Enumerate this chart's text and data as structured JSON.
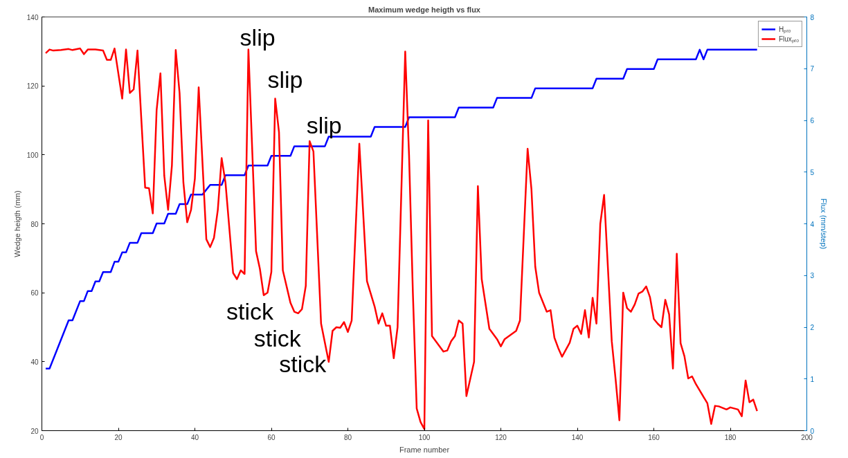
{
  "chart_data": {
    "type": "line",
    "title": "Maximum wedge heigth vs flux",
    "xlabel": "Frame number",
    "ylabel": "Wedge heigth (mm)",
    "y2label": "Flux (mm/step)",
    "xlim": [
      0,
      200
    ],
    "xticks": [
      0,
      20,
      40,
      60,
      80,
      100,
      120,
      140,
      160,
      180,
      200
    ],
    "ylim": [
      20,
      140
    ],
    "yticks": [
      20,
      40,
      60,
      80,
      100,
      120,
      140
    ],
    "y2lim": [
      0,
      8
    ],
    "y2ticks": [
      0,
      1,
      2,
      3,
      4,
      5,
      6,
      7,
      8
    ],
    "grid": false,
    "legend": "top right",
    "line_style": "solid",
    "marker": "none",
    "series": [
      {
        "name": "Hₚᵣₒ",
        "color": "#0000ff",
        "x": [
          1,
          2,
          7,
          8,
          10,
          11,
          12,
          13,
          14,
          15,
          16,
          18,
          19,
          20,
          21,
          22,
          23,
          25,
          26,
          29,
          30,
          32,
          33,
          35,
          36,
          38,
          39,
          42,
          44,
          47,
          48,
          53,
          54,
          59,
          60,
          65,
          66,
          74,
          75,
          86,
          87,
          95,
          96,
          108,
          109,
          118,
          119,
          128,
          129,
          144,
          145,
          152,
          153,
          160,
          161,
          171,
          172,
          173,
          174,
          187
        ],
        "values": [
          38,
          38,
          52,
          52,
          57.6,
          57.6,
          60.5,
          60.5,
          63.3,
          63.3,
          66,
          66,
          69,
          69,
          71.7,
          71.7,
          74.5,
          74.5,
          77.3,
          77.3,
          80.1,
          80.1,
          82.9,
          82.9,
          85.7,
          85.7,
          88.5,
          88.5,
          91.3,
          91.3,
          94.1,
          94.1,
          96.9,
          96.9,
          99.7,
          99.7,
          102.5,
          102.5,
          105.3,
          105.3,
          108.1,
          108.1,
          110.9,
          110.9,
          113.7,
          113.7,
          116.5,
          116.5,
          119.3,
          119.3,
          122.1,
          122.1,
          124.9,
          124.9,
          127.7,
          127.7,
          130.5,
          127.7,
          130.5,
          130.5
        ]
      },
      {
        "name": "Fluxₚᵣₒ",
        "color": "#ff0000",
        "axis": "y2",
        "x": [
          1,
          2,
          3,
          5,
          7,
          8,
          10,
          11,
          12,
          14,
          16,
          17,
          18,
          19,
          21,
          22,
          23,
          24,
          25,
          27,
          28,
          29,
          30,
          31,
          32,
          33,
          34,
          35,
          36,
          37,
          38,
          39,
          40,
          41,
          43,
          44,
          45,
          46,
          47,
          48,
          50,
          51,
          52,
          53,
          54,
          56,
          57,
          58,
          59,
          60,
          61,
          62,
          63,
          65,
          66,
          67,
          68,
          69,
          70,
          71,
          73,
          75,
          76,
          77,
          78,
          79,
          80,
          81,
          83,
          85,
          87,
          88,
          89,
          90,
          91,
          92,
          93,
          95,
          96,
          97,
          98,
          99,
          100,
          101,
          102,
          103,
          104,
          105,
          106,
          107,
          108,
          109,
          110,
          111,
          113,
          114,
          115,
          117,
          119,
          120,
          121,
          124,
          125,
          127,
          128,
          129,
          130,
          132,
          133,
          134,
          135,
          136,
          138,
          139,
          140,
          141,
          142,
          143,
          144,
          145,
          146,
          147,
          149,
          150,
          151,
          152,
          153,
          154,
          155,
          156,
          157,
          158,
          159,
          160,
          161,
          162,
          163,
          164,
          165,
          166,
          167,
          168,
          169,
          170,
          171,
          174,
          175,
          176,
          177,
          178,
          179,
          180,
          182,
          183,
          184,
          185,
          186,
          187
        ],
        "values": [
          7.3,
          7.37,
          7.35,
          7.36,
          7.38,
          7.36,
          7.39,
          7.28,
          7.37,
          7.37,
          7.35,
          7.17,
          7.17,
          7.39,
          6.42,
          7.37,
          6.53,
          6.6,
          7.35,
          4.7,
          4.69,
          4.2,
          6.2,
          6.91,
          4.93,
          4.27,
          5.13,
          7.36,
          6.53,
          4.8,
          4.03,
          4.27,
          4.87,
          6.64,
          3.7,
          3.55,
          3.73,
          4.27,
          5.27,
          4.8,
          3.05,
          2.93,
          3.1,
          3.03,
          7.37,
          3.47,
          3.13,
          2.62,
          2.67,
          3.07,
          6.42,
          5.77,
          3.1,
          2.47,
          2.3,
          2.27,
          2.35,
          2.8,
          5.6,
          5.4,
          2.07,
          1.33,
          1.93,
          2.0,
          1.99,
          2.1,
          1.91,
          2.13,
          5.55,
          2.89,
          2.4,
          2.07,
          2.27,
          2.03,
          2.03,
          1.4,
          2.0,
          7.33,
          5.33,
          2.67,
          0.43,
          0.17,
          0.03,
          6.0,
          1.83,
          1.73,
          1.63,
          1.53,
          1.55,
          1.73,
          1.83,
          2.13,
          2.07,
          0.67,
          1.33,
          4.73,
          2.93,
          1.97,
          1.77,
          1.63,
          1.77,
          1.93,
          2.13,
          5.45,
          4.67,
          3.17,
          2.67,
          2.3,
          2.33,
          1.8,
          1.6,
          1.43,
          1.7,
          1.97,
          2.03,
          1.87,
          2.33,
          1.8,
          2.57,
          2.07,
          4.0,
          4.56,
          1.73,
          1.0,
          0.2,
          2.67,
          2.37,
          2.3,
          2.44,
          2.65,
          2.69,
          2.79,
          2.58,
          2.16,
          2.07,
          2.0,
          2.53,
          2.25,
          1.2,
          3.42,
          1.69,
          1.44,
          1.01,
          1.05,
          0.9,
          0.53,
          0.13,
          0.48,
          0.47,
          0.44,
          0.41,
          0.45,
          0.41,
          0.28,
          0.97,
          0.55,
          0.6,
          0.38
        ]
      }
    ],
    "annotations": [
      "slip",
      "slip",
      "slip",
      "stick",
      "stick",
      "stick"
    ]
  }
}
